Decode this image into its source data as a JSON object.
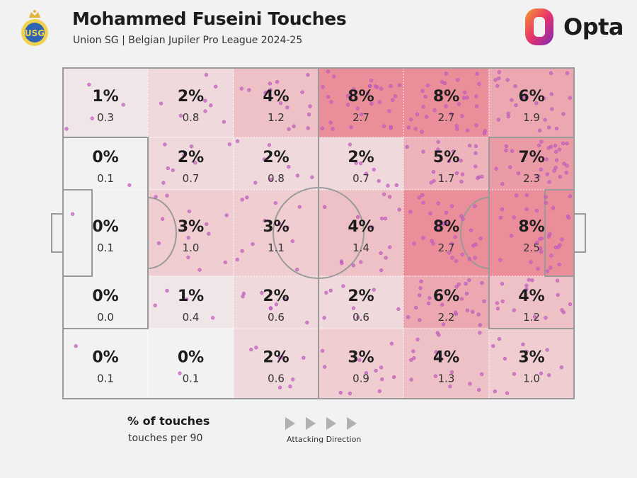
{
  "header": {
    "title": "Mohammed Fuseini Touches",
    "subtitle": "Union SG | Belgian Jupiler Pro League 2024-25",
    "club_logo_icon": "union-sg-crest-icon",
    "brand": "Opta",
    "brand_icon": "opta-logo-icon"
  },
  "legend": {
    "primary": "% of touches",
    "secondary": "touches per 90",
    "direction_label": "Attacking Direction",
    "direction_icon": "play-arrow-icon"
  },
  "colors": {
    "background": "#f2f2f2",
    "zone_low": "#f2f2f2",
    "zone_high": "#ea8f9a",
    "touch_dot": "#c660c6",
    "lines": "#9a9a9a"
  },
  "chart_data": {
    "type": "heatmap",
    "title": "Mohammed Fuseini Touches",
    "note": "Pitch divided into zones; each zone shows % of touches and touches per 90. Rows listed top to bottom, columns left to right (attacking left to right).",
    "columns": 6,
    "rows": 5,
    "zones": [
      [
        {
          "pct": "1%",
          "per90": "0.3",
          "value": 1
        },
        {
          "pct": "2%",
          "per90": "0.8",
          "value": 2
        },
        {
          "pct": "4%",
          "per90": "1.2",
          "value": 4
        },
        {
          "pct": "8%",
          "per90": "2.7",
          "value": 8
        },
        {
          "pct": "8%",
          "per90": "2.7",
          "value": 8
        },
        {
          "pct": "6%",
          "per90": "1.9",
          "value": 6
        }
      ],
      [
        {
          "pct": "0%",
          "per90": "0.1",
          "value": 0
        },
        {
          "pct": "2%",
          "per90": "0.7",
          "value": 2
        },
        {
          "pct": "2%",
          "per90": "0.8",
          "value": 2
        },
        {
          "pct": "2%",
          "per90": "0.7",
          "value": 2
        },
        {
          "pct": "5%",
          "per90": "1.7",
          "value": 5
        },
        {
          "pct": "7%",
          "per90": "2.3",
          "value": 7
        }
      ],
      [
        {
          "pct": "0%",
          "per90": "0.1",
          "value": 0
        },
        {
          "pct": "3%",
          "per90": "1.0",
          "value": 3
        },
        {
          "pct": "3%",
          "per90": "1.1",
          "value": 3
        },
        {
          "pct": "4%",
          "per90": "1.4",
          "value": 4
        },
        {
          "pct": "8%",
          "per90": "2.7",
          "value": 8
        },
        {
          "pct": "8%",
          "per90": "2.5",
          "value": 8
        }
      ],
      [
        {
          "pct": "0%",
          "per90": "0.0",
          "value": 0
        },
        {
          "pct": "1%",
          "per90": "0.4",
          "value": 1
        },
        {
          "pct": "2%",
          "per90": "0.6",
          "value": 2
        },
        {
          "pct": "2%",
          "per90": "0.6",
          "value": 2
        },
        {
          "pct": "6%",
          "per90": "2.2",
          "value": 6
        },
        {
          "pct": "4%",
          "per90": "1.2",
          "value": 4
        }
      ],
      [
        {
          "pct": "0%",
          "per90": "0.1",
          "value": 0
        },
        {
          "pct": "0%",
          "per90": "0.1",
          "value": 0
        },
        {
          "pct": "2%",
          "per90": "0.6",
          "value": 2
        },
        {
          "pct": "3%",
          "per90": "0.9",
          "value": 3
        },
        {
          "pct": "4%",
          "per90": "1.3",
          "value": 4
        },
        {
          "pct": "3%",
          "per90": "1.0",
          "value": 3
        }
      ]
    ],
    "max_value": 8,
    "dots_per_percent": 4
  }
}
